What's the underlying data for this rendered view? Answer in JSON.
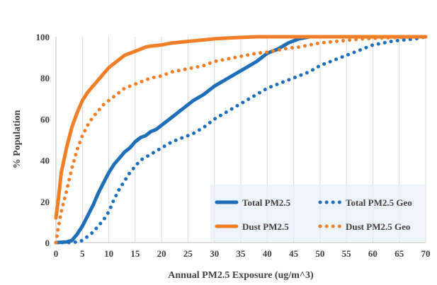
{
  "chart_data": {
    "type": "line",
    "title": "",
    "xlabel": "Annual PM2.5 Exposure (ug/m^3)",
    "ylabel": "% Population",
    "xlim": [
      0,
      70
    ],
    "ylim": [
      0,
      100
    ],
    "x_ticks": [
      "0",
      "5",
      "10",
      "15",
      "20",
      "25",
      "30",
      "35",
      "40",
      "45",
      "50",
      "55",
      "60",
      "65",
      "70"
    ],
    "y_ticks": [
      "0",
      "20",
      "40",
      "60",
      "80",
      "100"
    ],
    "grid": "vertical",
    "legend_position": "bottom-right",
    "series": [
      {
        "name": "Total PM2.5",
        "style": "solid",
        "color": "#1F6FB8",
        "x": [
          0,
          2,
          3,
          4,
          5,
          6,
          7,
          8,
          9,
          10,
          11,
          12,
          13,
          14,
          15,
          16,
          17,
          18,
          19,
          20,
          22,
          24,
          26,
          28,
          30,
          32,
          34,
          36,
          38,
          40,
          42,
          44,
          46,
          47,
          48,
          50,
          55,
          60,
          65,
          70
        ],
        "y": [
          0,
          0.3,
          1,
          4,
          8,
          13,
          18,
          24,
          29,
          34,
          38,
          41,
          44,
          46,
          49,
          51,
          52,
          54,
          55,
          57,
          61,
          65,
          69,
          72,
          76,
          79,
          82,
          85,
          88,
          92,
          94,
          97,
          99,
          99.5,
          100,
          100,
          100,
          100,
          100,
          100
        ]
      },
      {
        "name": "Total PM2.5 Geo",
        "style": "dotted",
        "color": "#1F6FB8",
        "x": [
          0,
          3,
          4,
          5,
          6,
          7,
          8,
          9,
          10,
          11,
          12,
          13,
          14,
          15,
          16,
          18,
          20,
          22,
          24,
          26,
          28,
          30,
          32,
          34,
          36,
          38,
          40,
          42,
          44,
          46,
          48,
          50,
          52,
          54,
          56,
          58,
          60,
          62,
          64,
          66,
          68,
          70
        ],
        "y": [
          0,
          0,
          0.3,
          1,
          3,
          5,
          8,
          11,
          15,
          21,
          26,
          30,
          34,
          37,
          40,
          43,
          46,
          49,
          51,
          53,
          56,
          60,
          63,
          66,
          69,
          72,
          75,
          77,
          79,
          81,
          83,
          86,
          88,
          90,
          92,
          94,
          96,
          97,
          98,
          98.5,
          99,
          100
        ]
      },
      {
        "name": "Dust PM2.5",
        "style": "solid",
        "color": "#F07F27",
        "x": [
          0,
          0.5,
          1,
          2,
          3,
          4,
          5,
          6,
          7,
          8,
          9,
          10,
          11,
          12,
          13,
          14,
          15,
          16,
          17,
          18,
          20,
          22,
          24,
          26,
          28,
          30,
          32,
          34,
          36,
          38,
          40,
          45,
          50,
          55,
          60,
          65,
          70
        ],
        "y": [
          12,
          22,
          34,
          46,
          56,
          63,
          69,
          73,
          76,
          79,
          82,
          85,
          87,
          89,
          91,
          92,
          93,
          94,
          95,
          95.5,
          96,
          97,
          97.5,
          98,
          98.5,
          99,
          99.3,
          99.6,
          99.8,
          100,
          100,
          100,
          100,
          100,
          100,
          100,
          100
        ]
      },
      {
        "name": "Dust PM2.5 Geo",
        "style": "dotted",
        "color": "#F07F27",
        "x": [
          0,
          0.5,
          1,
          2,
          3,
          4,
          5,
          6,
          7,
          8,
          9,
          10,
          11,
          12,
          13,
          14,
          15,
          16,
          18,
          20,
          22,
          24,
          26,
          28,
          30,
          32,
          34,
          36,
          38,
          40,
          42,
          44,
          46,
          48,
          50,
          52,
          54,
          56,
          58,
          60,
          62,
          64,
          66,
          68,
          70
        ],
        "y": [
          0,
          8,
          15,
          25,
          36,
          45,
          52,
          57,
          61,
          64,
          67,
          69,
          71,
          73,
          75,
          76,
          77,
          78,
          80,
          81,
          83,
          84,
          85,
          86,
          88,
          89,
          90,
          91,
          92,
          92.5,
          93.5,
          94.5,
          95,
          96,
          97,
          97.5,
          98,
          98.5,
          99,
          99.2,
          99.4,
          99.6,
          99.8,
          100,
          100
        ]
      }
    ]
  }
}
